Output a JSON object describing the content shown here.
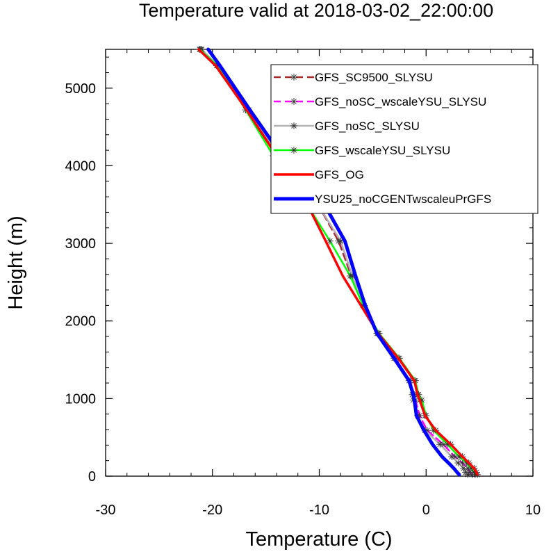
{
  "chart_data": {
    "type": "line",
    "title": "Temperature valid at 2018-03-02_22:00:00",
    "xlabel": "Temperature (C)",
    "ylabel": "Height (m)",
    "xlim": [
      -30,
      10
    ],
    "ylim": [
      0,
      5500
    ],
    "xticks": [
      -30,
      -20,
      -10,
      0,
      10
    ],
    "yticks": [
      0,
      1000,
      2000,
      3000,
      4000,
      5000
    ],
    "grid": false,
    "legend_position": "top-right",
    "series": [
      {
        "name": "GFS_SC9500_SLYSU",
        "color": "#a52a2a",
        "dash": "dashed",
        "marker": "asterisk",
        "x": [
          4.8,
          4.7,
          4.5,
          4.0,
          3.4,
          2.3,
          0.9,
          -0.1,
          -0.6,
          -0.8,
          -1.1,
          -2.6,
          -4.5,
          -5.9,
          -7.0,
          -8.2,
          -10.0,
          -12.6,
          -13.9,
          -16.7,
          -19.6,
          -21.2
        ],
        "y": [
          20,
          50,
          100,
          170,
          250,
          410,
          590,
          780,
          980,
          1050,
          1230,
          1520,
          1840,
          2200,
          2580,
          3030,
          3470,
          3950,
          4130,
          4720,
          5290,
          5500
        ]
      },
      {
        "name": "GFS_noSC_wscaleYSU_SLYSU",
        "color": "#ff00ff",
        "dash": "dashed",
        "marker": "asterisk",
        "x": [
          4.3,
          4.1,
          3.9,
          3.4,
          2.7,
          1.6,
          0.1,
          -0.6,
          -1.0,
          -1.1,
          -1.5,
          -2.9,
          -4.5,
          -5.8,
          -6.9,
          -8.0,
          -10.0,
          -12.7,
          -13.8,
          -16.7,
          -19.6,
          -21.1
        ],
        "y": [
          20,
          50,
          100,
          170,
          250,
          410,
          590,
          780,
          980,
          1050,
          1230,
          1520,
          1840,
          2200,
          2580,
          3030,
          3470,
          3950,
          4130,
          4720,
          5290,
          5500
        ]
      },
      {
        "name": "GFS_noSC_SLYSU",
        "color": "#b4b4b4",
        "dash": "solid",
        "marker": "asterisk",
        "x": [
          3.9,
          3.7,
          3.5,
          3.0,
          2.4,
          1.3,
          -0.1,
          -0.8,
          -1.2,
          -1.3,
          -1.6,
          -3.0,
          -4.6,
          -5.8,
          -6.9,
          -8.0,
          -10.0,
          -12.7,
          -13.8,
          -16.6,
          -19.5,
          -21.0
        ],
        "y": [
          20,
          50,
          100,
          170,
          250,
          410,
          590,
          780,
          980,
          1050,
          1230,
          1520,
          1840,
          2200,
          2580,
          3030,
          3470,
          3950,
          4130,
          4720,
          5290,
          5500
        ]
      },
      {
        "name": "GFS_wscaleYSU_SLYSU",
        "color": "#00ff00",
        "dash": "solid",
        "marker": "asterisk",
        "x": [
          4.6,
          4.5,
          4.2,
          3.8,
          3.1,
          2.0,
          0.7,
          0.0,
          -0.4,
          -0.7,
          -1.0,
          -2.5,
          -4.4,
          -5.9,
          -7.1,
          -9.0,
          -11.0,
          -13.0,
          -14.3,
          -16.9,
          -19.5,
          -21.2
        ],
        "y": [
          20,
          50,
          100,
          170,
          250,
          410,
          590,
          780,
          980,
          1050,
          1230,
          1520,
          1840,
          2200,
          2580,
          3030,
          3470,
          3950,
          4130,
          4720,
          5290,
          5500
        ]
      },
      {
        "name": "GFS_OG",
        "color": "#ff0000",
        "dash": "solid",
        "marker": "none",
        "x": [
          4.8,
          4.7,
          4.5,
          4.0,
          3.4,
          2.3,
          0.9,
          -0.1,
          -0.6,
          -0.8,
          -1.1,
          -2.6,
          -4.5,
          -6.1,
          -7.8,
          -9.4,
          -11.0,
          -12.6,
          -14.0,
          -16.8,
          -19.7,
          -21.3
        ],
        "y": [
          20,
          50,
          100,
          170,
          250,
          410,
          590,
          780,
          980,
          1050,
          1230,
          1520,
          1840,
          2200,
          2580,
          3030,
          3470,
          3950,
          4130,
          4720,
          5290,
          5500
        ]
      },
      {
        "name": "YSU25_noCGENTwscaleuPrGFS",
        "color": "#0000ff",
        "dash": "solid",
        "marker": "none",
        "x": [
          3.1,
          2.9,
          2.6,
          2.1,
          1.5,
          0.6,
          -0.2,
          -0.9,
          -1.1,
          -1.2,
          -1.6,
          -3.0,
          -4.6,
          -5.7,
          -6.6,
          -7.6,
          -9.4,
          -11.6,
          -13.5,
          -16.5,
          -19.3,
          -20.4
        ],
        "y": [
          20,
          50,
          100,
          170,
          250,
          410,
          590,
          780,
          980,
          1050,
          1230,
          1520,
          1840,
          2200,
          2580,
          3030,
          3470,
          3950,
          4130,
          4720,
          5290,
          5500
        ]
      }
    ]
  }
}
